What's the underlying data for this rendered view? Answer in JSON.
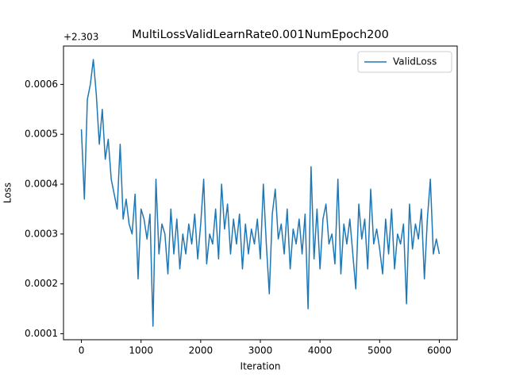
{
  "chart_data": {
    "type": "line",
    "title": "MultiLossValidLearnRate0.001NumEpoch200",
    "x_label": "Iteration",
    "y_label": "Loss",
    "y_offset_label": "+2.303",
    "x": [
      0,
      50,
      100,
      150,
      200,
      250,
      300,
      350,
      400,
      450,
      500,
      550,
      600,
      650,
      700,
      750,
      800,
      850,
      900,
      950,
      1000,
      1050,
      1100,
      1150,
      1200,
      1250,
      1300,
      1350,
      1400,
      1450,
      1500,
      1550,
      1600,
      1650,
      1700,
      1750,
      1800,
      1850,
      1900,
      1950,
      2000,
      2050,
      2100,
      2150,
      2200,
      2250,
      2300,
      2350,
      2400,
      2450,
      2500,
      2550,
      2600,
      2650,
      2700,
      2750,
      2800,
      2850,
      2900,
      2950,
      3000,
      3050,
      3100,
      3150,
      3200,
      3250,
      3300,
      3350,
      3400,
      3450,
      3500,
      3550,
      3600,
      3650,
      3700,
      3750,
      3800,
      3850,
      3900,
      3950,
      4000,
      4050,
      4100,
      4150,
      4200,
      4250,
      4300,
      4350,
      4400,
      4450,
      4500,
      4550,
      4600,
      4650,
      4700,
      4750,
      4800,
      4850,
      4900,
      4950,
      5000,
      5050,
      5100,
      5150,
      5200,
      5250,
      5300,
      5350,
      5400,
      5450,
      5500,
      5550,
      5600,
      5650,
      5700,
      5750,
      5800,
      5850,
      5900,
      5950,
      6000
    ],
    "series": [
      {
        "name": "ValidLoss",
        "color": "#1f77b4",
        "values": [
          0.00051,
          0.00037,
          0.00057,
          0.0006,
          0.00065,
          0.00058,
          0.00048,
          0.00055,
          0.00045,
          0.00049,
          0.00041,
          0.00038,
          0.00035,
          0.00048,
          0.00033,
          0.00037,
          0.00032,
          0.0003,
          0.00038,
          0.00021,
          0.00035,
          0.00033,
          0.00029,
          0.00034,
          0.000115,
          0.00041,
          0.00026,
          0.00032,
          0.0003,
          0.00022,
          0.00035,
          0.00026,
          0.00033,
          0.00023,
          0.0003,
          0.00026,
          0.00032,
          0.00028,
          0.00034,
          0.00025,
          0.00032,
          0.00041,
          0.00024,
          0.0003,
          0.00028,
          0.00035,
          0.00025,
          0.0004,
          0.00031,
          0.00036,
          0.00026,
          0.00033,
          0.00028,
          0.00034,
          0.00023,
          0.00032,
          0.00026,
          0.00031,
          0.00028,
          0.00033,
          0.00025,
          0.0004,
          0.00028,
          0.00018,
          0.00034,
          0.00039,
          0.00029,
          0.00032,
          0.00026,
          0.00035,
          0.00023,
          0.00031,
          0.00028,
          0.00033,
          0.00026,
          0.00034,
          0.00015,
          0.000435,
          0.00025,
          0.00035,
          0.00023,
          0.00033,
          0.00036,
          0.00028,
          0.0003,
          0.00024,
          0.00041,
          0.00022,
          0.00032,
          0.00028,
          0.00033,
          0.00026,
          0.00019,
          0.00036,
          0.00029,
          0.00033,
          0.00023,
          0.00039,
          0.00028,
          0.00031,
          0.00027,
          0.00022,
          0.00033,
          0.00026,
          0.00035,
          0.00023,
          0.0003,
          0.00028,
          0.00032,
          0.00016,
          0.00036,
          0.00027,
          0.00032,
          0.00029,
          0.00035,
          0.00021,
          0.00033,
          0.00041,
          0.00026,
          0.00029,
          0.00026
        ]
      }
    ],
    "xlim": [
      -300,
      6300
    ],
    "ylim": [
      8.8e-05,
      0.000677
    ],
    "xticks": [
      0,
      1000,
      2000,
      3000,
      4000,
      5000,
      6000
    ],
    "yticks": [
      0.0001,
      0.0002,
      0.0003,
      0.0004,
      0.0005,
      0.0006
    ],
    "legend": "upper right"
  }
}
